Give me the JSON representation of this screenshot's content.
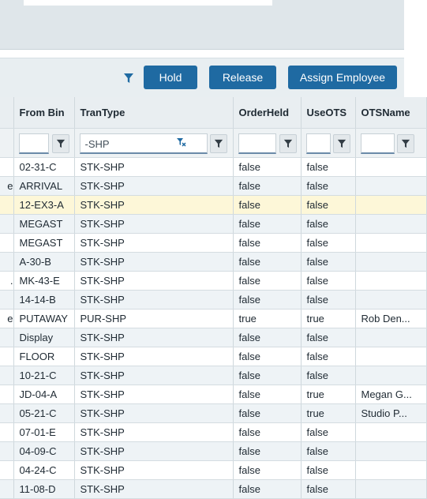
{
  "toolbar": {
    "hold_label": "Hold",
    "release_label": "Release",
    "assign_label": "Assign Employee"
  },
  "columns": [
    "",
    "From Bin",
    "TranType",
    "OrderHeld",
    "UseOTS",
    "OTSName"
  ],
  "filters": {
    "trantype_value": "-SHP"
  },
  "rows": [
    {
      "c0": "",
      "from_bin": "02-31-C",
      "trantype": "STK-SHP",
      "orderheld": "false",
      "useots": "false",
      "otsname": ""
    },
    {
      "c0": "e",
      "from_bin": "ARRIVAL",
      "trantype": "STK-SHP",
      "orderheld": "false",
      "useots": "false",
      "otsname": ""
    },
    {
      "c0": "",
      "from_bin": "12-EX3-A",
      "trantype": "STK-SHP",
      "orderheld": "false",
      "useots": "false",
      "otsname": ""
    },
    {
      "c0": "",
      "from_bin": "MEGAST",
      "trantype": "STK-SHP",
      "orderheld": "false",
      "useots": "false",
      "otsname": ""
    },
    {
      "c0": "",
      "from_bin": "MEGAST",
      "trantype": "STK-SHP",
      "orderheld": "false",
      "useots": "false",
      "otsname": ""
    },
    {
      "c0": "",
      "from_bin": "A-30-B",
      "trantype": "STK-SHP",
      "orderheld": "false",
      "useots": "false",
      "otsname": ""
    },
    {
      "c0": ".",
      "from_bin": "MK-43-E",
      "trantype": "STK-SHP",
      "orderheld": "false",
      "useots": "false",
      "otsname": ""
    },
    {
      "c0": "",
      "from_bin": "14-14-B",
      "trantype": "STK-SHP",
      "orderheld": "false",
      "useots": "false",
      "otsname": ""
    },
    {
      "c0": "e",
      "from_bin": "PUTAWAY",
      "trantype": "PUR-SHP",
      "orderheld": "true",
      "useots": "true",
      "otsname": "Rob Den..."
    },
    {
      "c0": "",
      "from_bin": "Display",
      "trantype": "STK-SHP",
      "orderheld": "false",
      "useots": "false",
      "otsname": ""
    },
    {
      "c0": "",
      "from_bin": "FLOOR",
      "trantype": "STK-SHP",
      "orderheld": "false",
      "useots": "false",
      "otsname": ""
    },
    {
      "c0": "",
      "from_bin": "10-21-C",
      "trantype": "STK-SHP",
      "orderheld": "false",
      "useots": "false",
      "otsname": ""
    },
    {
      "c0": "",
      "from_bin": "JD-04-A",
      "trantype": "STK-SHP",
      "orderheld": "false",
      "useots": "true",
      "otsname": "Megan G..."
    },
    {
      "c0": "",
      "from_bin": "05-21-C",
      "trantype": "STK-SHP",
      "orderheld": "false",
      "useots": "true",
      "otsname": "Studio P..."
    },
    {
      "c0": "",
      "from_bin": "07-01-E",
      "trantype": "STK-SHP",
      "orderheld": "false",
      "useots": "false",
      "otsname": ""
    },
    {
      "c0": "",
      "from_bin": "04-09-C",
      "trantype": "STK-SHP",
      "orderheld": "false",
      "useots": "false",
      "otsname": ""
    },
    {
      "c0": "",
      "from_bin": "04-24-C",
      "trantype": "STK-SHP",
      "orderheld": "false",
      "useots": "false",
      "otsname": ""
    },
    {
      "c0": "",
      "from_bin": "11-08-D",
      "trantype": "STK-SHP",
      "orderheld": "false",
      "useots": "false",
      "otsname": ""
    }
  ],
  "selected_row": 2,
  "icons": {
    "toolbar_filter": "filter-icon",
    "column_filter": "filter-icon",
    "clear_filter": "clear-filter-icon"
  },
  "colors": {
    "button": "#1f6aa2",
    "selected_row": "#fdf7d8",
    "alt_row": "#eef3f6",
    "header": "#e9eef1"
  }
}
